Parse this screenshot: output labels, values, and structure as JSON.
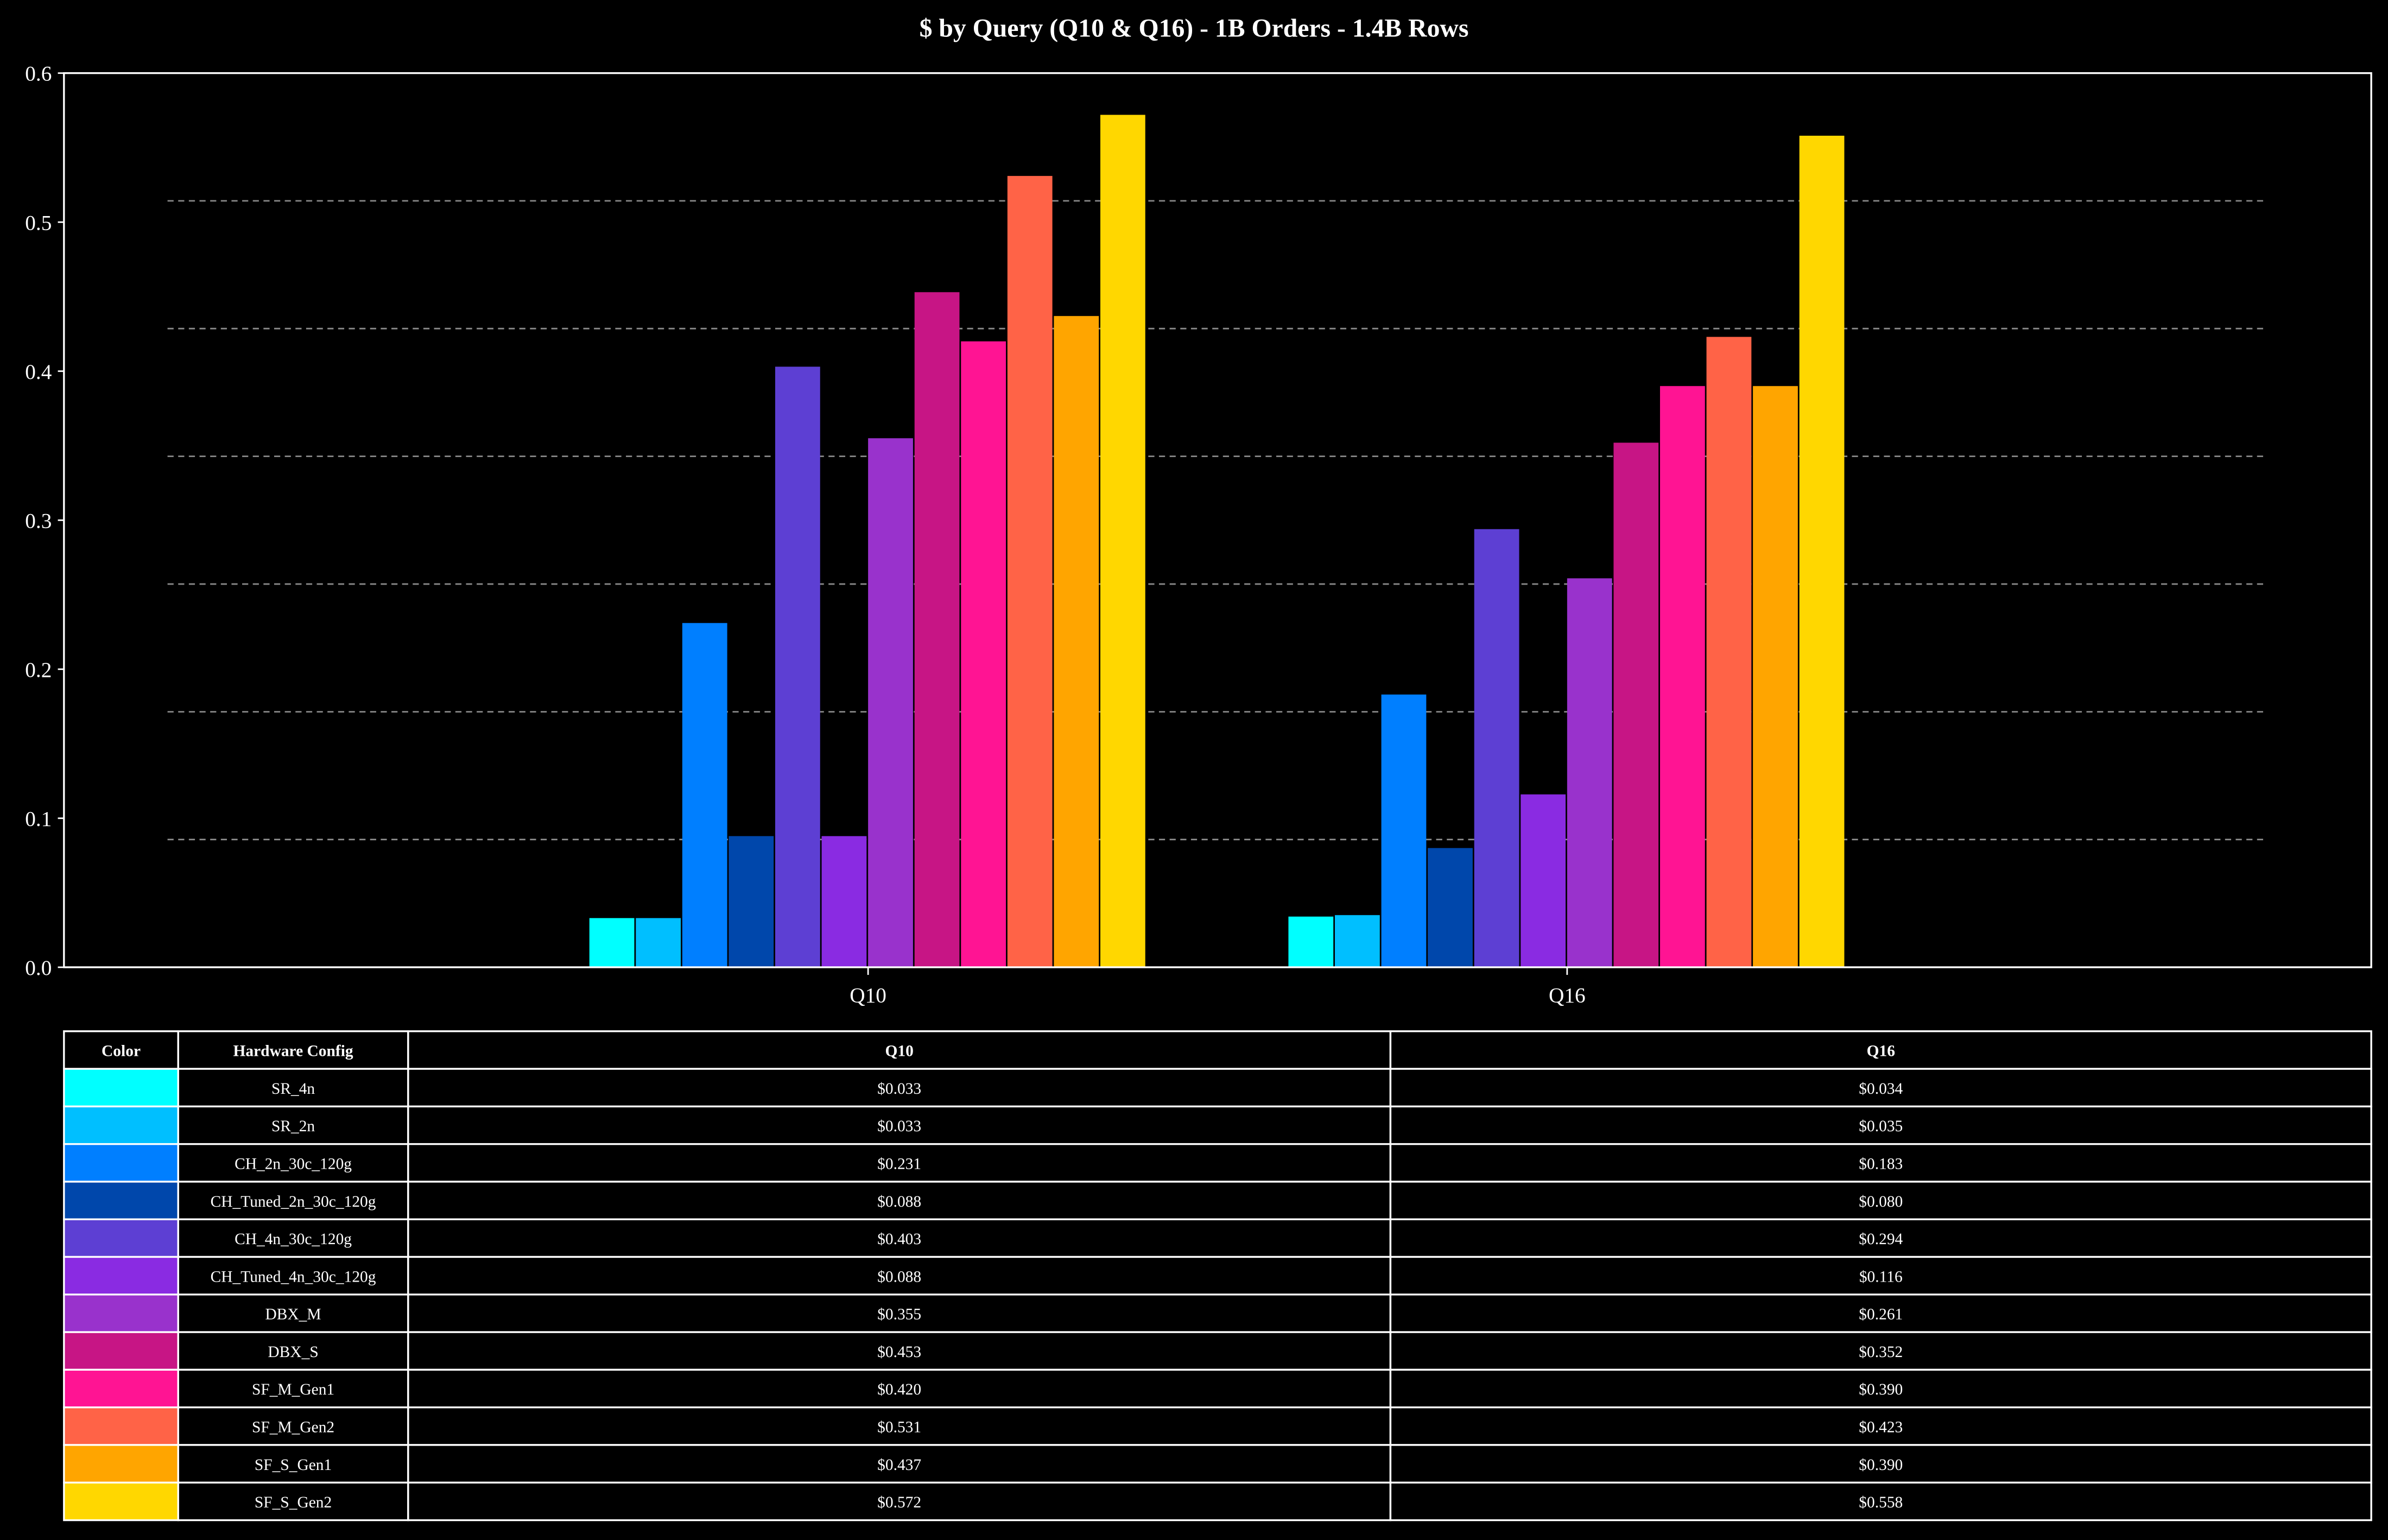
{
  "chart_data": {
    "type": "bar",
    "title": "$ by Query (Q10 & Q16) - 1B Orders - 1.4B Rows",
    "xlabel": "",
    "ylabel": "",
    "ylim": [
      0,
      0.6
    ],
    "yticks": [
      "0.0",
      "0.1",
      "0.2",
      "0.3",
      "0.4",
      "0.5",
      "0.6"
    ],
    "grid": "horizontal dashed",
    "categories": [
      "Q10",
      "Q16"
    ],
    "series": [
      {
        "name": "SR_4n",
        "color": "#00FFFF",
        "values": [
          0.033,
          0.034
        ],
        "labels": [
          "$0.033",
          "$0.034"
        ]
      },
      {
        "name": "SR_2n",
        "color": "#00BFFF",
        "values": [
          0.033,
          0.035
        ],
        "labels": [
          "$0.033",
          "$0.035"
        ]
      },
      {
        "name": "CH_2n_30c_120g",
        "color": "#007FFF",
        "values": [
          0.231,
          0.183
        ],
        "labels": [
          "$0.231",
          "$0.183"
        ]
      },
      {
        "name": "CH_Tuned_2n_30c_120g",
        "color": "#0047AB",
        "values": [
          0.088,
          0.08
        ],
        "labels": [
          "$0.088",
          "$0.080"
        ]
      },
      {
        "name": "CH_4n_30c_120g",
        "color": "#5D3FD3",
        "values": [
          0.403,
          0.294
        ],
        "labels": [
          "$0.403",
          "$0.294"
        ]
      },
      {
        "name": "CH_Tuned_4n_30c_120g",
        "color": "#8A2BE2",
        "values": [
          0.088,
          0.116
        ],
        "labels": [
          "$0.088",
          "$0.116"
        ]
      },
      {
        "name": "DBX_M",
        "color": "#9932CC",
        "values": [
          0.355,
          0.261
        ],
        "labels": [
          "$0.355",
          "$0.261"
        ]
      },
      {
        "name": "DBX_S",
        "color": "#C71585",
        "values": [
          0.453,
          0.352
        ],
        "labels": [
          "$0.453",
          "$0.352"
        ]
      },
      {
        "name": "SF_M_Gen1",
        "color": "#FF1493",
        "values": [
          0.42,
          0.39
        ],
        "labels": [
          "$0.420",
          "$0.390"
        ]
      },
      {
        "name": "SF_M_Gen2",
        "color": "#FF6347",
        "values": [
          0.531,
          0.423
        ],
        "labels": [
          "$0.531",
          "$0.423"
        ]
      },
      {
        "name": "SF_S_Gen1",
        "color": "#FFA500",
        "values": [
          0.437,
          0.39
        ],
        "labels": [
          "$0.437",
          "$0.390"
        ]
      },
      {
        "name": "SF_S_Gen2",
        "color": "#FFD700",
        "values": [
          0.572,
          0.558
        ],
        "labels": [
          "$0.572",
          "$0.558"
        ]
      }
    ],
    "table": {
      "headers": [
        "Color",
        "Hardware Config",
        "Q10",
        "Q16"
      ]
    }
  }
}
